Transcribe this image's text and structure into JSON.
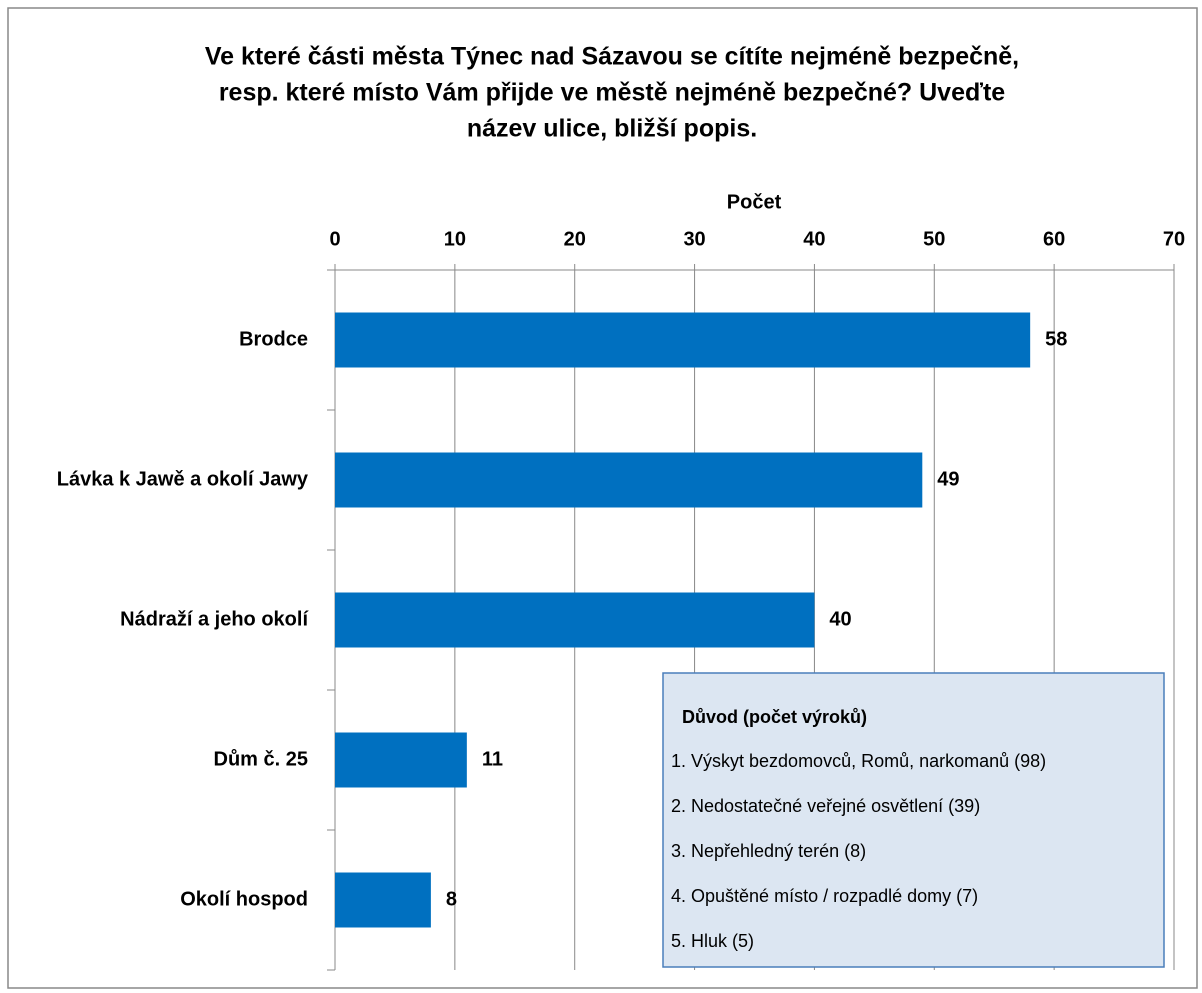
{
  "chart_data": {
    "type": "barh",
    "title": [
      "Ve které části města Týnec nad Sázavou se cítíte nejméně bezpečně,",
      "resp. které místo Vám přijde ve městě nejméně bezpečné? Uveďte",
      "název ulice, bližší popis."
    ],
    "xlabel": "Počet",
    "categories": [
      "Brodce",
      "Lávka k Jawě a okolí Jawy",
      "Nádraží a jeho okolí",
      "Dům č. 25",
      "Okolí hospod"
    ],
    "values": [
      58,
      49,
      40,
      11,
      8
    ],
    "color": "#0070c0",
    "xlim": [
      0,
      70
    ],
    "xticks": [
      0,
      10,
      20,
      30,
      40,
      50,
      60,
      70
    ],
    "grid": true,
    "annotation": {
      "title": "Důvod (počet výroků)",
      "items": [
        "1. Výskyt bezdomovců, Romů, narkomanů (98)",
        "2. Nedostatečné veřejné osvětlení  (39)",
        "3. Nepřehledný terén (8)",
        "4. Opuštěné místo / rozpadlé domy (7)",
        "5. Hluk  (5)"
      ]
    }
  }
}
